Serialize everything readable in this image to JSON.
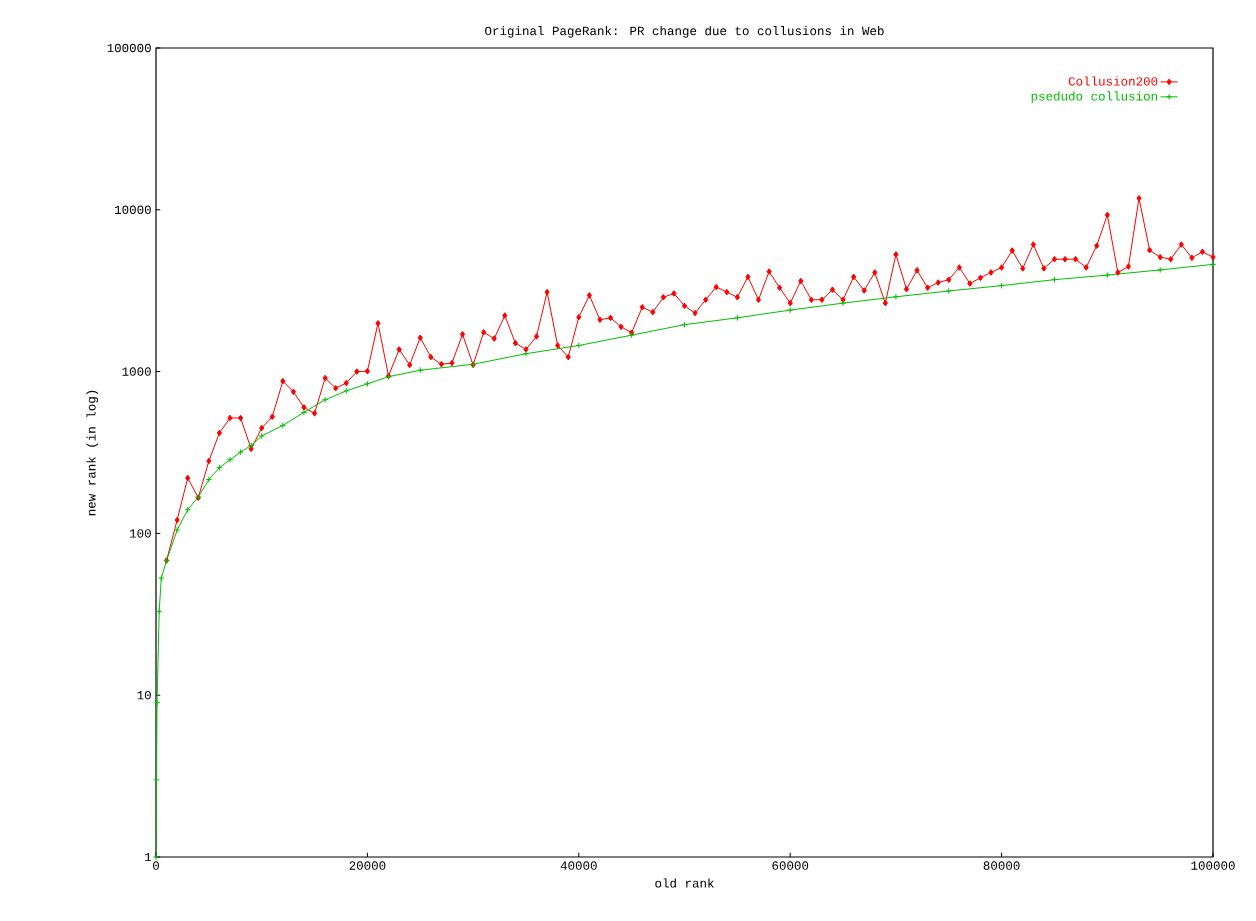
{
  "chart_data": {
    "type": "line",
    "title": "Original PageRank: PR change due to collusions in Web",
    "xlabel": "old rank",
    "ylabel": "new rank (in log)",
    "log": "y",
    "legend": "top right",
    "grid": false,
    "xlim": [
      0,
      100000
    ],
    "xticks": [
      0,
      20000,
      40000,
      60000,
      80000,
      100000
    ],
    "ylim": [
      1,
      100000
    ],
    "yticks": [
      1,
      10,
      100,
      1000,
      10000,
      100000
    ],
    "series": [
      {
        "name": "Collusion200",
        "color": "#ff0000",
        "marker": "diamond",
        "x": [
          1000,
          2000,
          3000,
          4000,
          5000,
          6000,
          7000,
          8000,
          9000,
          10000,
          11000,
          12000,
          13000,
          14000,
          15000,
          16000,
          17000,
          18000,
          19000,
          20000,
          21000,
          22000,
          23000,
          24000,
          25000,
          26000,
          27000,
          28000,
          29000,
          30000,
          31000,
          32000,
          33000,
          34000,
          35000,
          36000,
          37000,
          38000,
          39000,
          40000,
          41000,
          42000,
          43000,
          44000,
          45000,
          46000,
          47000,
          48000,
          49000,
          50000,
          51000,
          52000,
          53000,
          54000,
          55000,
          56000,
          57000,
          58000,
          59000,
          60000,
          61000,
          62000,
          63000,
          64000,
          65000,
          66000,
          67000,
          68000,
          69000,
          70000,
          71000,
          72000,
          73000,
          74000,
          75000,
          76000,
          77000,
          78000,
          79000,
          80000,
          81000,
          82000,
          83000,
          84000,
          85000,
          86000,
          87000,
          88000,
          89000,
          90000,
          91000,
          92000,
          93000,
          94000,
          95000,
          96000,
          97000,
          98000,
          99000,
          100000
        ],
        "values": [
          68,
          121,
          220,
          166,
          280,
          418,
          517,
          517,
          333,
          448,
          526,
          873,
          750,
          601,
          552,
          912,
          790,
          850,
          1000,
          1005,
          1990,
          940,
          1370,
          1100,
          1620,
          1230,
          1110,
          1130,
          1700,
          1100,
          1750,
          1600,
          2220,
          1500,
          1370,
          1650,
          3100,
          1450,
          1230,
          2170,
          2960,
          2090,
          2150,
          1890,
          1740,
          2500,
          2330,
          2880,
          3040,
          2550,
          2300,
          2780,
          3330,
          3100,
          2880,
          3850,
          2780,
          4150,
          3300,
          2650,
          3630,
          2780,
          2780,
          3210,
          2780,
          3850,
          3170,
          4100,
          2650,
          5300,
          3230,
          4230,
          3300,
          3550,
          3700,
          4400,
          3500,
          3800,
          4100,
          4400,
          5600,
          4340,
          6100,
          4340,
          4950,
          4950,
          4950,
          4400,
          6000,
          9300,
          4100,
          4460,
          11800,
          5630,
          5100,
          4950,
          6100,
          5050,
          5500,
          5100
        ]
      },
      {
        "name": "psedudo collusion",
        "color": "#00c000",
        "marker": "cross",
        "x": [
          0,
          50,
          100,
          300,
          500,
          1000,
          2000,
          3000,
          4000,
          5000,
          6000,
          7000,
          8000,
          9000,
          10000,
          12000,
          14000,
          16000,
          18000,
          20000,
          22000,
          25000,
          30000,
          35000,
          40000,
          45000,
          50000,
          55000,
          60000,
          65000,
          70000,
          75000,
          80000,
          85000,
          90000,
          95000,
          100000
        ],
        "values": [
          1,
          3,
          9,
          33,
          53,
          68,
          105,
          140,
          168,
          215,
          255,
          285,
          318,
          350,
          400,
          465,
          560,
          670,
          760,
          840,
          930,
          1020,
          1110,
          1290,
          1450,
          1680,
          1950,
          2150,
          2400,
          2650,
          2900,
          3150,
          3400,
          3700,
          3950,
          4250,
          4600
        ]
      }
    ]
  }
}
